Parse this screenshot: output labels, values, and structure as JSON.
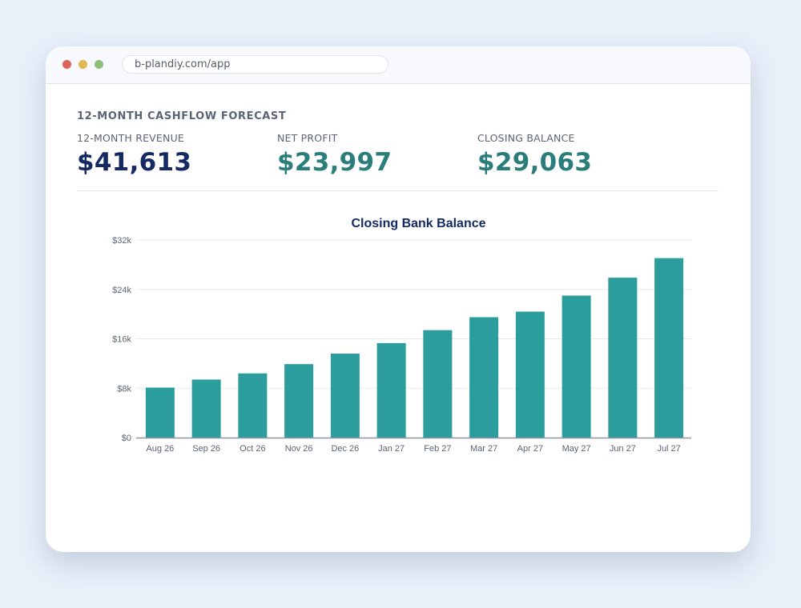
{
  "browser": {
    "url": "b-plandiy.com/app",
    "dot_colors": [
      "#dd6157",
      "#e2b754",
      "#8ec07c"
    ]
  },
  "page": {
    "heading": "12-MONTH CASHFLOW FORECAST"
  },
  "kpis": [
    {
      "label": "12-MONTH REVENUE",
      "value": "$41,613",
      "color": "#152a63"
    },
    {
      "label": "NET PROFIT",
      "value": "$23,997",
      "color": "#2a7d7b"
    },
    {
      "label": "CLOSING BALANCE",
      "value": "$29,063",
      "color": "#2a7d7b"
    }
  ],
  "chart_data": {
    "type": "bar",
    "title": "Closing Bank Balance",
    "xlabel": "",
    "ylabel": "",
    "categories": [
      "Aug 26",
      "Sep 26",
      "Oct 26",
      "Nov 26",
      "Dec 26",
      "Jan 27",
      "Feb 27",
      "Mar 27",
      "Apr 27",
      "May 27",
      "Jun 27",
      "Jul 27"
    ],
    "values": [
      8100,
      9400,
      10400,
      11900,
      13600,
      15300,
      17400,
      19500,
      20400,
      23000,
      25900,
      29063
    ],
    "ylim": [
      0,
      32000
    ],
    "yticks": [
      {
        "value": 0,
        "label": "$0"
      },
      {
        "value": 8000,
        "label": "$8k"
      },
      {
        "value": 16000,
        "label": "$16k"
      },
      {
        "value": 24000,
        "label": "$24k"
      },
      {
        "value": 32000,
        "label": "$32k"
      }
    ],
    "grid": true,
    "bar_color": "#2a9d9c",
    "title_color": "#152a63"
  }
}
